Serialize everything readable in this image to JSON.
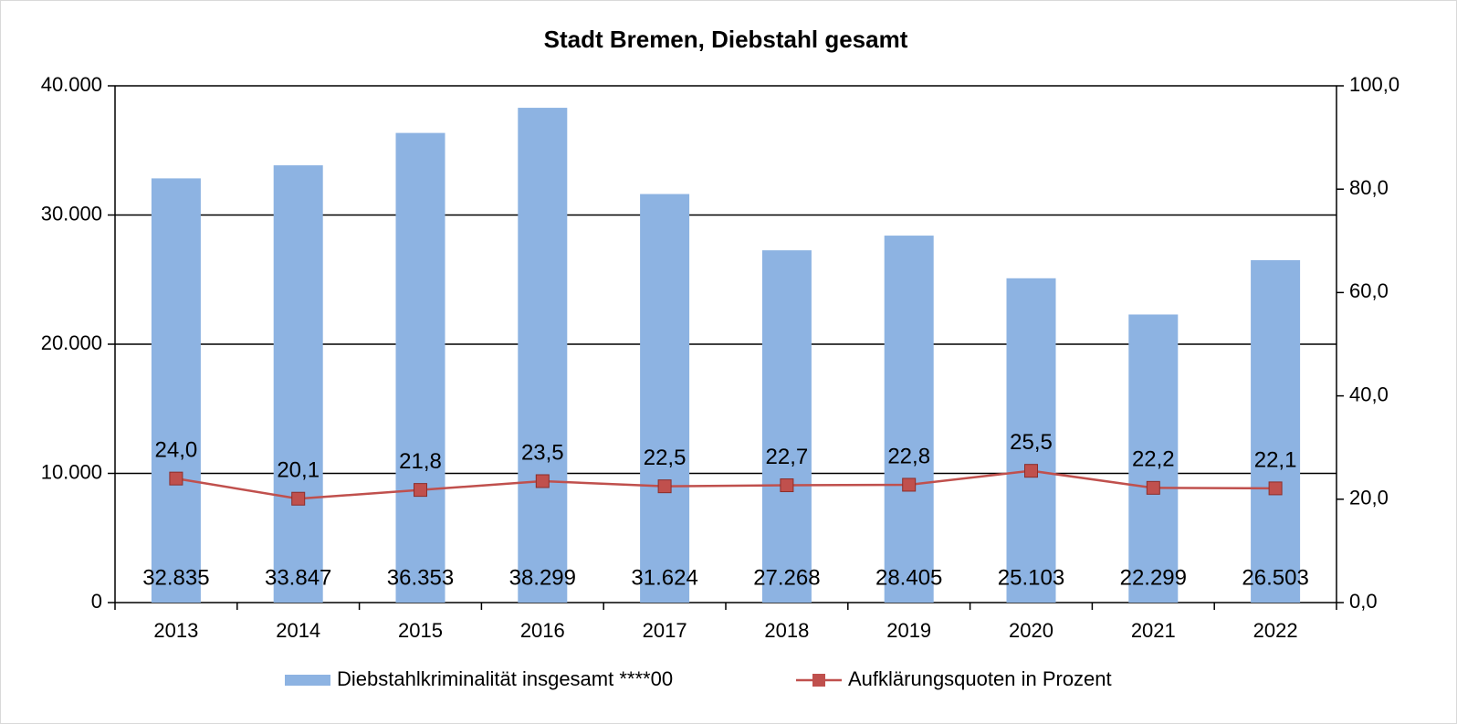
{
  "chart_data": {
    "type": "bar_line",
    "title": "Stadt Bremen, Diebstahl gesamt",
    "categories": [
      "2013",
      "2014",
      "2015",
      "2016",
      "2017",
      "2018",
      "2019",
      "2020",
      "2021",
      "2022"
    ],
    "series": [
      {
        "name": "Diebstahlkriminalität insgesamt ****00",
        "type": "bar",
        "color": "#8db3e2",
        "values": [
          32835,
          33847,
          36353,
          38299,
          31624,
          27268,
          28405,
          25103,
          22299,
          26503
        ],
        "value_labels": [
          "32.835",
          "33.847",
          "36.353",
          "38.299",
          "31.624",
          "27.268",
          "28.405",
          "25.103",
          "22.299",
          "26.503"
        ]
      },
      {
        "name": "Aufklärungsquoten in Prozent",
        "type": "line",
        "axis": "y2",
        "color": "#c0504d",
        "values": [
          24.0,
          20.1,
          21.8,
          23.5,
          22.5,
          22.7,
          22.8,
          25.5,
          22.2,
          22.1
        ],
        "value_labels": [
          "24,0",
          "20,1",
          "21,8",
          "23,5",
          "22,5",
          "22,7",
          "22,8",
          "25,5",
          "22,2",
          "22,1"
        ]
      }
    ],
    "ylim": [
      0,
      40000
    ],
    "yticks": [
      0,
      {
        "value": 10000,
        "label": "10.000"
      },
      {
        "value": 20000,
        "label": "20.000"
      },
      {
        "value": 30000,
        "label": "30.000"
      },
      {
        "value": 40000,
        "label": "40.000"
      }
    ],
    "y2lim": [
      0,
      100
    ],
    "y2ticks": [
      {
        "value": 0,
        "label": "0,0"
      },
      {
        "value": 20,
        "label": "20,0"
      },
      {
        "value": 40,
        "label": "40,0"
      },
      {
        "value": 60,
        "label": "60,0"
      },
      {
        "value": 80,
        "label": "80,0"
      },
      {
        "value": 100,
        "label": "100,0"
      }
    ],
    "grid": true,
    "legend": "bottom"
  }
}
